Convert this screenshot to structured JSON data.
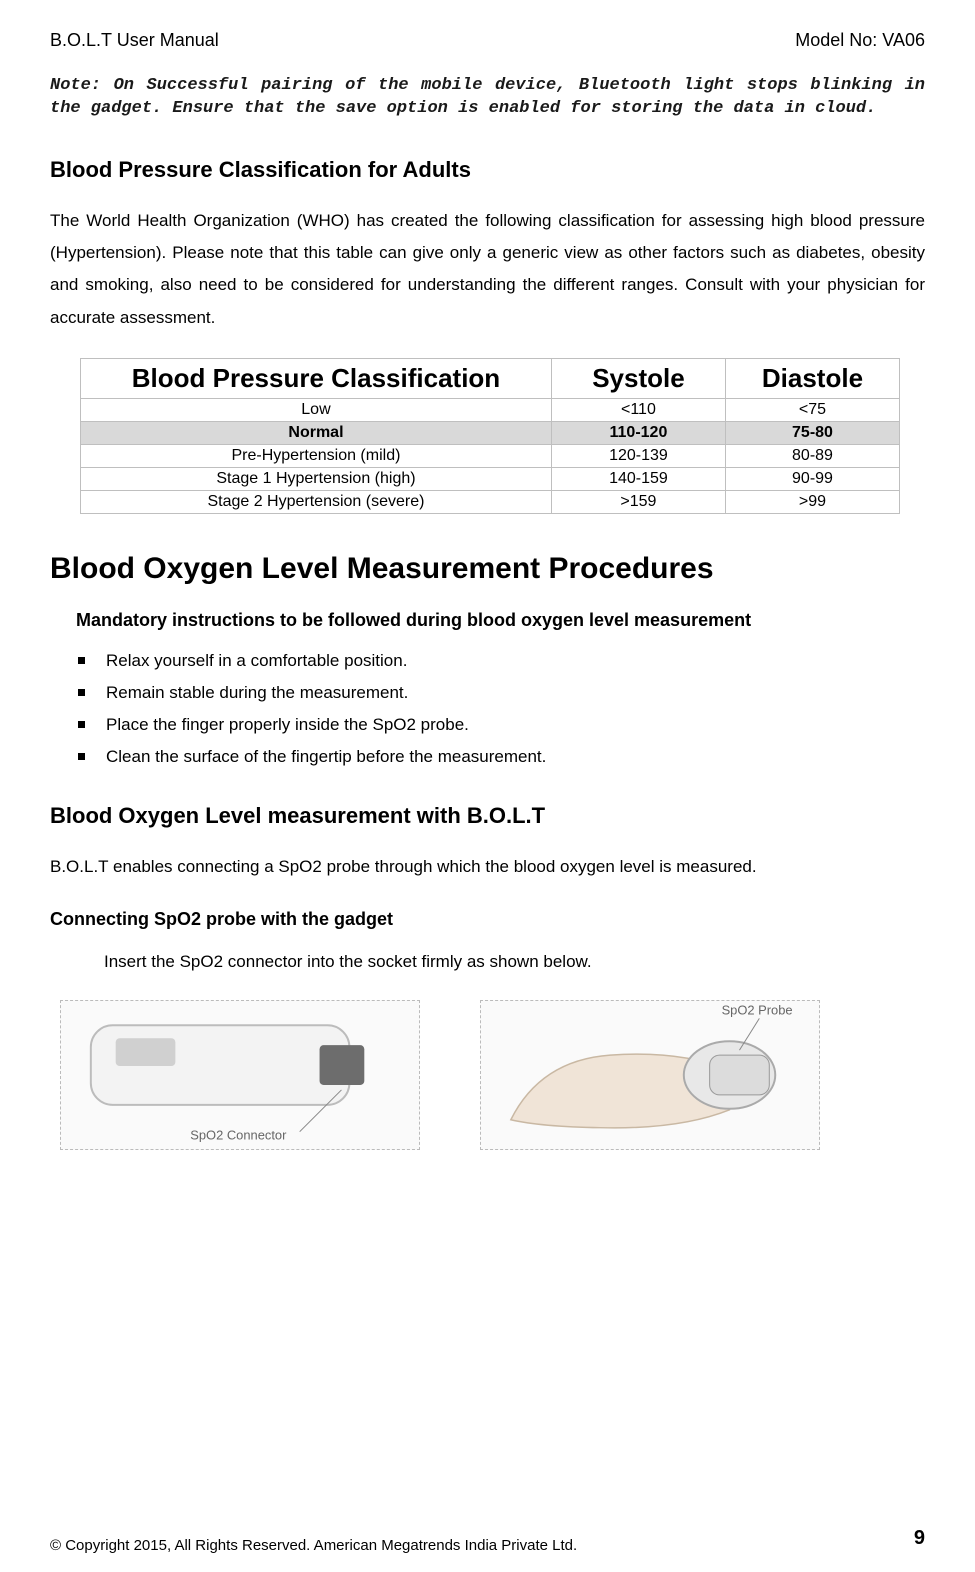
{
  "header": {
    "left": "B.O.L.T User Manual",
    "right": "Model No: VA06"
  },
  "note": "Note: On Successful pairing of the mobile device, Bluetooth light stops blinking in the gadget. Ensure that the save option is enabled for storing the data in cloud.",
  "bp_section": {
    "title": "Blood Pressure Classification for Adults",
    "paragraph": "The World Health Organization (WHO) has created the following classification for assessing high blood pressure (Hypertension). Please note that this table can give only a generic view as other factors such as diabetes, obesity and smoking, also need to be considered for understanding the different ranges. Consult with your physician for accurate assessment."
  },
  "bp_table": {
    "headers": [
      "Blood Pressure Classification",
      "Systole",
      "Diastole"
    ],
    "col_widths": [
      "460px",
      "170px",
      "170px"
    ],
    "rows": [
      {
        "cells": [
          "Low",
          "<110",
          "<75"
        ],
        "shaded": false
      },
      {
        "cells": [
          "Normal",
          "110-120",
          "75-80"
        ],
        "shaded": true
      },
      {
        "cells": [
          "Pre-Hypertension (mild)",
          "120-139",
          "80-89"
        ],
        "shaded": false
      },
      {
        "cells": [
          "Stage 1 Hypertension (high)",
          "140-159",
          "90-99"
        ],
        "shaded": false
      },
      {
        "cells": [
          "Stage 2 Hypertension (severe)",
          ">159",
          ">99"
        ],
        "shaded": false
      }
    ]
  },
  "spo2_section": {
    "title": "Blood Oxygen Level Measurement Procedures",
    "mandatory_heading": "Mandatory instructions to be followed during blood oxygen level measurement",
    "bullets": [
      "Relax yourself in a comfortable position.",
      "Remain stable during the measurement.",
      "Place the finger properly inside the SpO2 probe.",
      "Clean the surface of the fingertip before the measurement."
    ],
    "measure_heading": "Blood Oxygen Level measurement with B.O.L.T",
    "measure_text": "B.O.L.T enables connecting a SpO2 probe through which the blood oxygen level is measured.",
    "connect_heading": "Connecting SpO2 probe with the gadget",
    "connect_text": "Insert the SpO2 connector into the socket firmly as shown below."
  },
  "images": {
    "left_label": "SpO2 Connector",
    "right_label": "SpO2 Probe"
  },
  "footer": {
    "copyright": "© Copyright 2015, All Rights Reserved. American Megatrends India Private Ltd.",
    "page": "9"
  }
}
